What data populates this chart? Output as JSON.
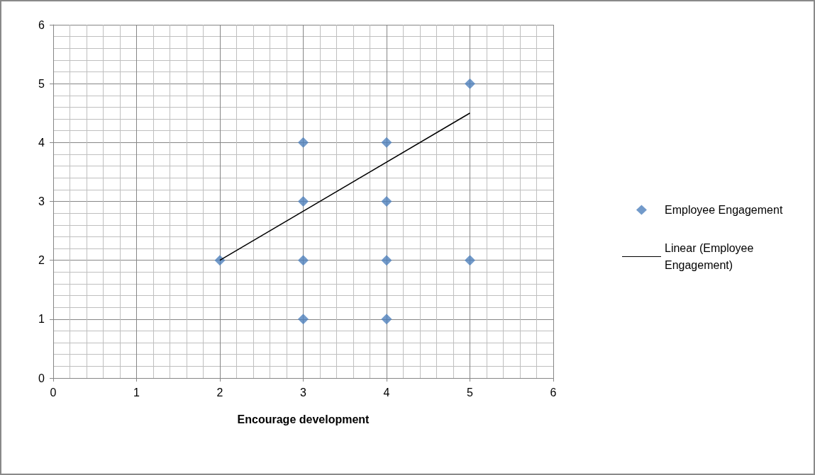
{
  "chart_data": {
    "type": "scatter",
    "xlabel": "Encourage development",
    "series": [
      {
        "name": "Employee Engagement",
        "color": "#4f81bd",
        "marker": "diamond",
        "x": [
          2,
          3,
          3,
          3,
          3,
          4,
          4,
          4,
          4,
          5,
          5
        ],
        "values": [
          2,
          4,
          3,
          2,
          1,
          4,
          3,
          2,
          1,
          5,
          2
        ]
      },
      {
        "name": "Linear (Employee Engagement)",
        "type": "line",
        "color": "#000000",
        "marker": "none",
        "line_style": "solid",
        "x": [
          2,
          5
        ],
        "values": [
          2,
          4.5
        ]
      }
    ],
    "xlim": [
      0,
      6
    ],
    "xticks": [
      0,
      1,
      2,
      3,
      4,
      5,
      6
    ],
    "ylim": [
      0,
      6
    ],
    "yticks": [
      0,
      1,
      2,
      3,
      4,
      5,
      6
    ],
    "grid": true,
    "legend": "right"
  }
}
